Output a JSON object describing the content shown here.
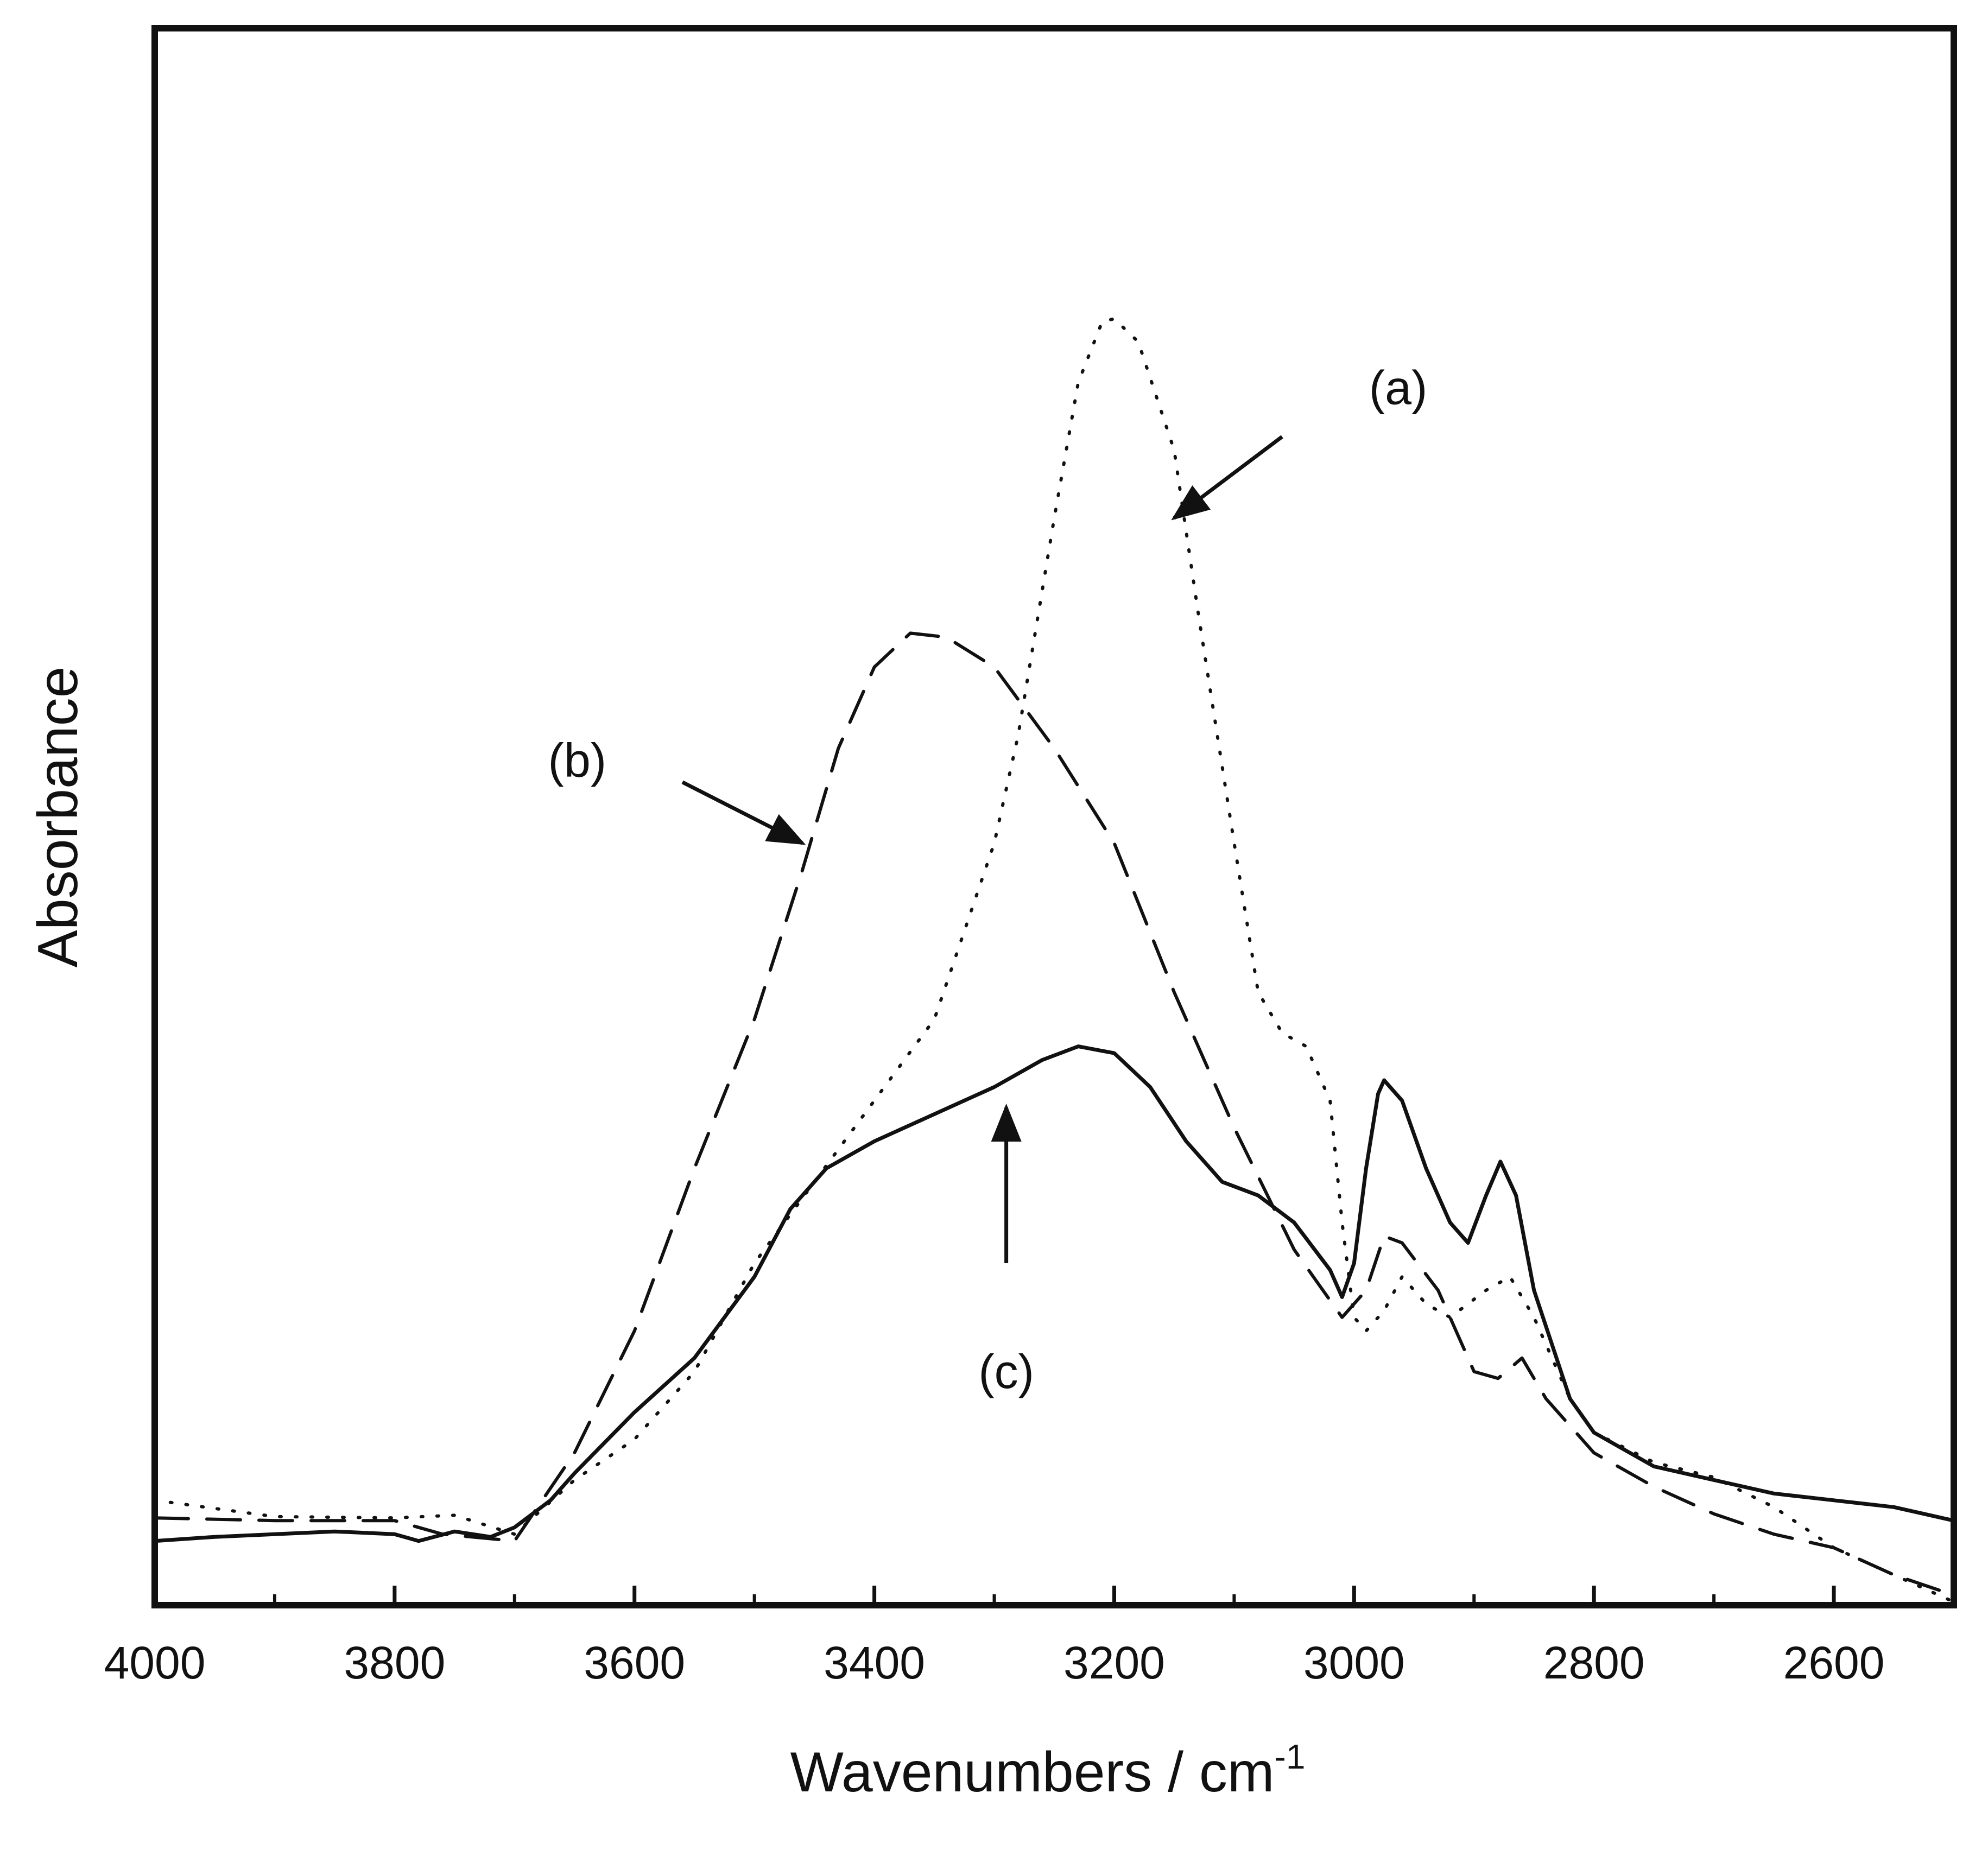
{
  "chart_data": {
    "type": "line",
    "title": "",
    "xlabel": "Wavenumbers / cm",
    "xlabel_superscript": "-1",
    "ylabel": "Absorbance",
    "xlim": [
      4000,
      2500
    ],
    "x_reversed": true,
    "ylim": [
      0,
      1.0
    ],
    "y_ticks_labeled": false,
    "grid": false,
    "legend": "none",
    "x_ticks": [
      "4000",
      "3800",
      "3600",
      "3400",
      "3200",
      "3000",
      "2800",
      "2600"
    ],
    "colors": {
      "lines": "#111111",
      "background": "#ffffff"
    },
    "series": [
      {
        "name": "(a)",
        "style": "dotted",
        "points": [
          [
            4000,
            0.075
          ],
          [
            3900,
            0.063
          ],
          [
            3800,
            0.062
          ],
          [
            3750,
            0.064
          ],
          [
            3700,
            0.05
          ],
          [
            3650,
            0.09
          ],
          [
            3600,
            0.12
          ],
          [
            3550,
            0.17
          ],
          [
            3500,
            0.25
          ],
          [
            3450,
            0.31
          ],
          [
            3400,
            0.37
          ],
          [
            3350,
            0.43
          ],
          [
            3300,
            0.56
          ],
          [
            3280,
            0.64
          ],
          [
            3250,
            0.8
          ],
          [
            3230,
            0.9
          ],
          [
            3210,
            0.945
          ],
          [
            3200,
            0.947
          ],
          [
            3180,
            0.93
          ],
          [
            3150,
            0.85
          ],
          [
            3130,
            0.73
          ],
          [
            3100,
            0.56
          ],
          [
            3080,
            0.45
          ],
          [
            3060,
            0.42
          ],
          [
            3040,
            0.41
          ],
          [
            3020,
            0.37
          ],
          [
            3010,
            0.28
          ],
          [
            3000,
            0.21
          ],
          [
            2990,
            0.2
          ],
          [
            2975,
            0.215
          ],
          [
            2960,
            0.24
          ],
          [
            2940,
            0.22
          ],
          [
            2920,
            0.21
          ],
          [
            2890,
            0.23
          ],
          [
            2870,
            0.24
          ],
          [
            2850,
            0.21
          ],
          [
            2820,
            0.15
          ],
          [
            2800,
            0.125
          ],
          [
            2750,
            0.103
          ],
          [
            2700,
            0.092
          ],
          [
            2650,
            0.07
          ],
          [
            2600,
            0.04
          ],
          [
            2550,
            0.02
          ],
          [
            2500,
            0.0
          ]
        ]
      },
      {
        "name": "(b)",
        "style": "dashed",
        "points": [
          [
            4000,
            0.062
          ],
          [
            3900,
            0.06
          ],
          [
            3800,
            0.06
          ],
          [
            3760,
            0.05
          ],
          [
            3700,
            0.045
          ],
          [
            3650,
            0.11
          ],
          [
            3600,
            0.2
          ],
          [
            3550,
            0.32
          ],
          [
            3500,
            0.43
          ],
          [
            3460,
            0.54
          ],
          [
            3430,
            0.63
          ],
          [
            3400,
            0.69
          ],
          [
            3370,
            0.715
          ],
          [
            3340,
            0.712
          ],
          [
            3300,
            0.69
          ],
          [
            3250,
            0.63
          ],
          [
            3200,
            0.56
          ],
          [
            3150,
            0.45
          ],
          [
            3100,
            0.35
          ],
          [
            3050,
            0.26
          ],
          [
            3010,
            0.21
          ],
          [
            2990,
            0.23
          ],
          [
            2975,
            0.27
          ],
          [
            2960,
            0.265
          ],
          [
            2930,
            0.23
          ],
          [
            2900,
            0.17
          ],
          [
            2880,
            0.165
          ],
          [
            2860,
            0.18
          ],
          [
            2840,
            0.15
          ],
          [
            2800,
            0.11
          ],
          [
            2750,
            0.085
          ],
          [
            2700,
            0.065
          ],
          [
            2650,
            0.05
          ],
          [
            2600,
            0.04
          ],
          [
            2550,
            0.02
          ],
          [
            2500,
            0.005
          ]
        ]
      },
      {
        "name": "(c)",
        "style": "solid",
        "points": [
          [
            4000,
            0.045
          ],
          [
            3950,
            0.048
          ],
          [
            3900,
            0.05
          ],
          [
            3850,
            0.052
          ],
          [
            3800,
            0.05
          ],
          [
            3780,
            0.045
          ],
          [
            3750,
            0.052
          ],
          [
            3720,
            0.048
          ],
          [
            3700,
            0.055
          ],
          [
            3670,
            0.075
          ],
          [
            3650,
            0.095
          ],
          [
            3600,
            0.14
          ],
          [
            3550,
            0.18
          ],
          [
            3500,
            0.24
          ],
          [
            3470,
            0.29
          ],
          [
            3440,
            0.32
          ],
          [
            3400,
            0.34
          ],
          [
            3350,
            0.36
          ],
          [
            3300,
            0.38
          ],
          [
            3260,
            0.4
          ],
          [
            3230,
            0.41
          ],
          [
            3200,
            0.405
          ],
          [
            3170,
            0.38
          ],
          [
            3140,
            0.34
          ],
          [
            3110,
            0.31
          ],
          [
            3080,
            0.3
          ],
          [
            3050,
            0.28
          ],
          [
            3020,
            0.245
          ],
          [
            3010,
            0.225
          ],
          [
            3000,
            0.25
          ],
          [
            2990,
            0.32
          ],
          [
            2980,
            0.375
          ],
          [
            2975,
            0.385
          ],
          [
            2960,
            0.37
          ],
          [
            2940,
            0.32
          ],
          [
            2920,
            0.28
          ],
          [
            2905,
            0.265
          ],
          [
            2890,
            0.3
          ],
          [
            2878,
            0.325
          ],
          [
            2865,
            0.3
          ],
          [
            2850,
            0.23
          ],
          [
            2820,
            0.15
          ],
          [
            2800,
            0.125
          ],
          [
            2750,
            0.1
          ],
          [
            2700,
            0.09
          ],
          [
            2650,
            0.08
          ],
          [
            2600,
            0.075
          ],
          [
            2550,
            0.07
          ],
          [
            2500,
            0.06
          ]
        ]
      }
    ],
    "annotations": [
      {
        "label": "(a)",
        "target": [
          3150,
          0.8
        ],
        "arrow_from": [
          3060,
          0.86
        ]
      },
      {
        "label": "(b)",
        "target": [
          3460,
          0.56
        ],
        "arrow_from": [
          3560,
          0.605
        ]
      },
      {
        "label": "(c)",
        "target": [
          3290,
          0.365
        ],
        "arrow_from": [
          3290,
          0.25
        ]
      }
    ]
  }
}
